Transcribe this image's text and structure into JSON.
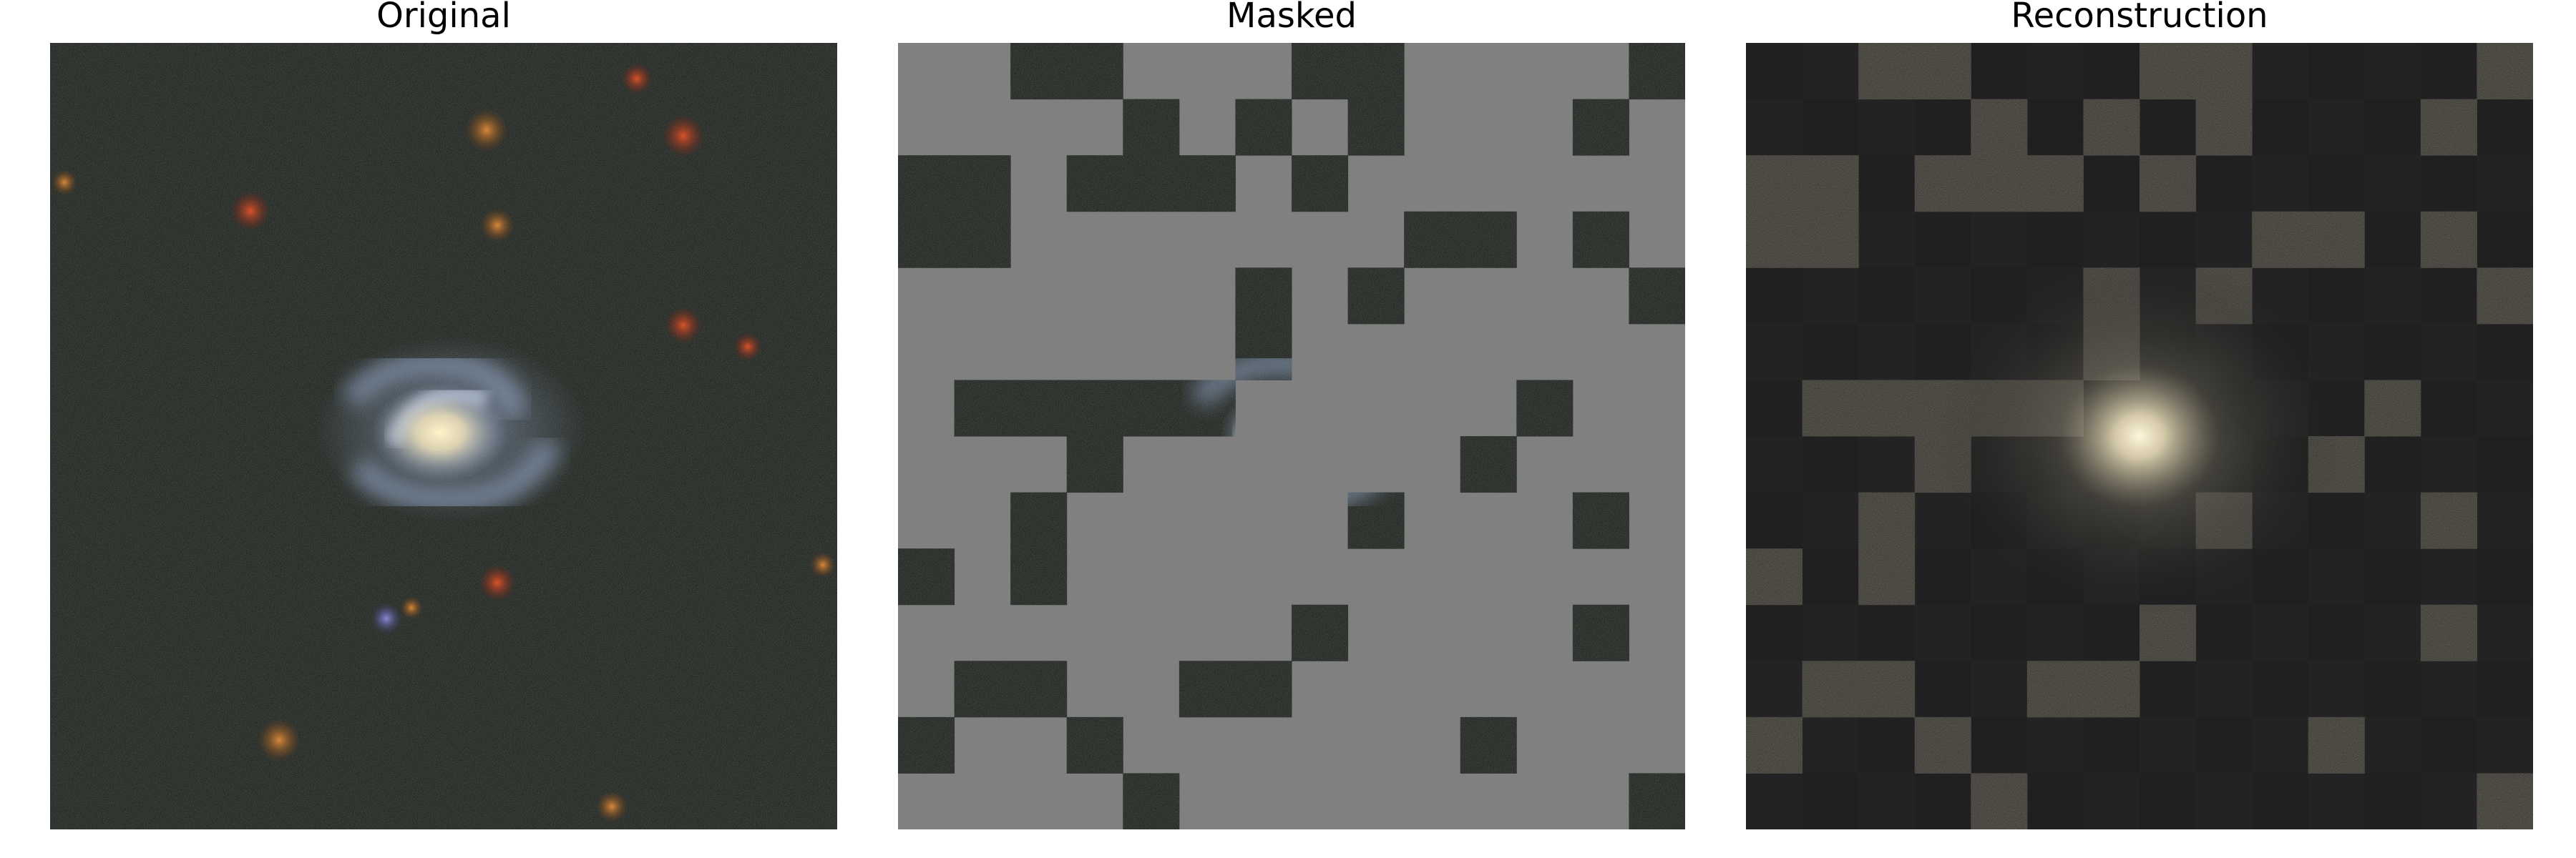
{
  "figure": {
    "panels": [
      {
        "id": "original",
        "title": "Original"
      },
      {
        "id": "masked",
        "title": "Masked"
      },
      {
        "id": "reconstruction",
        "title": "Reconstruction"
      }
    ]
  },
  "patch_grid": {
    "rows": 14,
    "cols": 14
  },
  "visible_patches": [
    [
      0,
      2
    ],
    [
      0,
      3
    ],
    [
      0,
      7
    ],
    [
      0,
      8
    ],
    [
      0,
      13
    ],
    [
      1,
      4
    ],
    [
      1,
      6
    ],
    [
      1,
      8
    ],
    [
      1,
      12
    ],
    [
      2,
      0
    ],
    [
      2,
      1
    ],
    [
      2,
      3
    ],
    [
      2,
      4
    ],
    [
      2,
      5
    ],
    [
      2,
      7
    ],
    [
      3,
      0
    ],
    [
      3,
      1
    ],
    [
      3,
      9
    ],
    [
      3,
      10
    ],
    [
      3,
      12
    ],
    [
      4,
      6
    ],
    [
      4,
      8
    ],
    [
      4,
      13
    ],
    [
      5,
      6
    ],
    [
      6,
      1
    ],
    [
      6,
      2
    ],
    [
      6,
      3
    ],
    [
      6,
      4
    ],
    [
      6,
      5
    ],
    [
      6,
      11
    ],
    [
      7,
      3
    ],
    [
      7,
      10
    ],
    [
      8,
      2
    ],
    [
      8,
      8
    ],
    [
      8,
      12
    ],
    [
      9,
      0
    ],
    [
      9,
      2
    ],
    [
      10,
      7
    ],
    [
      10,
      12
    ],
    [
      11,
      1
    ],
    [
      11,
      2
    ],
    [
      11,
      5
    ],
    [
      11,
      6
    ],
    [
      12,
      0
    ],
    [
      12,
      3
    ],
    [
      12,
      10
    ],
    [
      13,
      4
    ],
    [
      13,
      13
    ]
  ],
  "colors": {
    "mask_gray": "#808080",
    "sky_background": "#1c1f1c",
    "reconstruction_background": "#222222",
    "galaxy_core": "#f3e6c0",
    "galaxy_arms": "#9fb4d8"
  }
}
